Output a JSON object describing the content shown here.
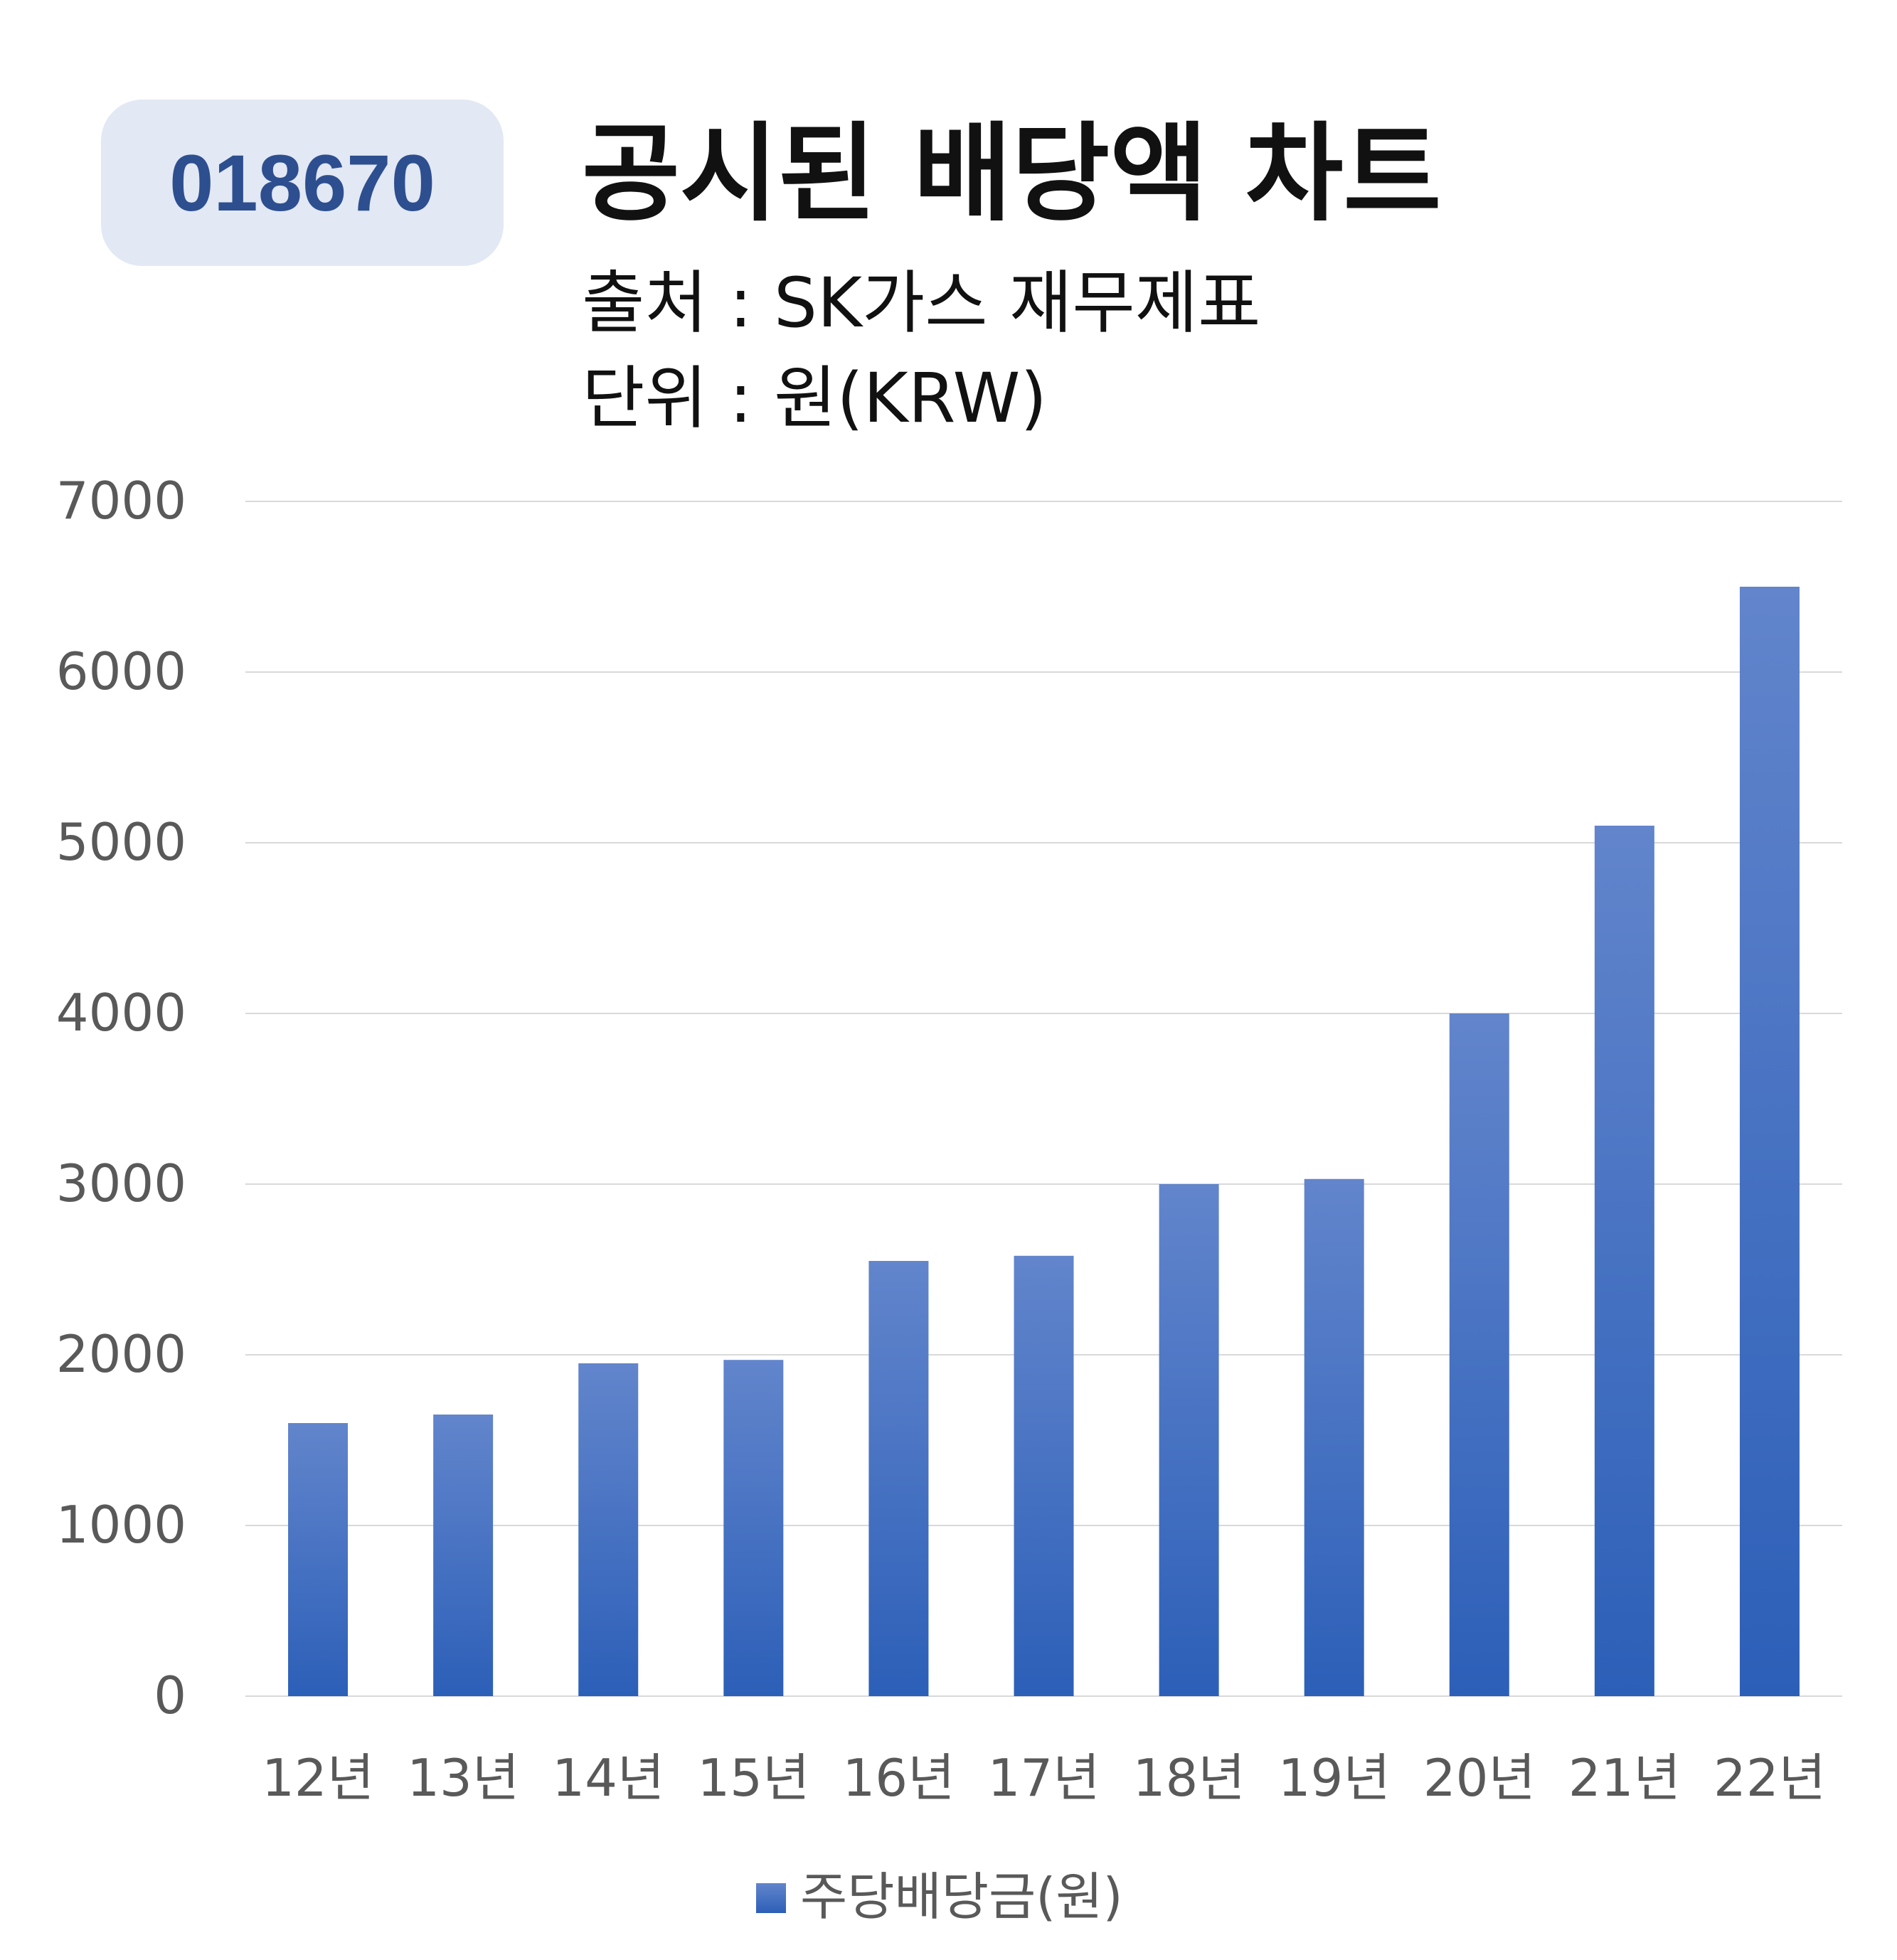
{
  "badge": {
    "code": "018670"
  },
  "header": {
    "title": "공시된 배당액 차트",
    "source": "출처 : SK가스 재무제표",
    "unit": "단위 : 원(KRW)"
  },
  "colors": {
    "bar_top": "#6285cc",
    "bar_bottom": "#2c5fb8",
    "grid": "#d9d9d9",
    "axis_text": "#595959",
    "badge_bg": "#e2e8f4",
    "badge_text": "#2d4f8f"
  },
  "chart_data": {
    "type": "bar",
    "title": "공시된 배당액 차트",
    "xlabel": "",
    "ylabel": "",
    "categories": [
      "12년",
      "13년",
      "14년",
      "15년",
      "16년",
      "17년",
      "18년",
      "19년",
      "20년",
      "21년",
      "22년"
    ],
    "series": [
      {
        "name": "주당배당금(원)",
        "values": [
          1600,
          1650,
          1950,
          1970,
          2550,
          2580,
          3000,
          3030,
          4000,
          5100,
          6500
        ]
      }
    ],
    "ylim": [
      0,
      7000
    ],
    "yticks": [
      "0",
      "1000",
      "2000",
      "3000",
      "4000",
      "5000",
      "6000",
      "7000"
    ],
    "grid": true,
    "legend": "bottom-center"
  }
}
